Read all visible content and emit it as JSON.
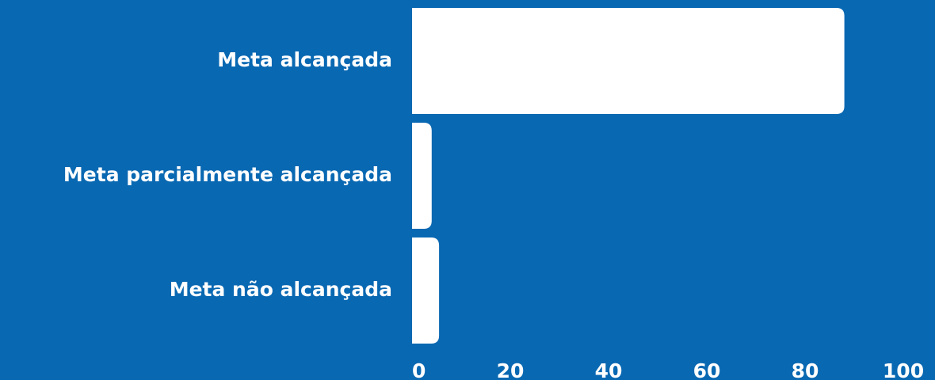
{
  "colors": {
    "background": "#0968B2",
    "bar": "#FFFFFF",
    "text": "#FFFFFF"
  },
  "chart_data": {
    "type": "bar",
    "orientation": "horizontal",
    "categories": [
      "Meta alcançada",
      "Meta parcialmente alcançada",
      "Meta não alcançada"
    ],
    "values": [
      88,
      4,
      5.5
    ],
    "title": "",
    "xlabel": "",
    "ylabel": "",
    "xlim": [
      0,
      100
    ],
    "x_ticks": [
      "0",
      "20",
      "40",
      "60",
      "80",
      "100"
    ],
    "grid": false,
    "legend": "none"
  }
}
